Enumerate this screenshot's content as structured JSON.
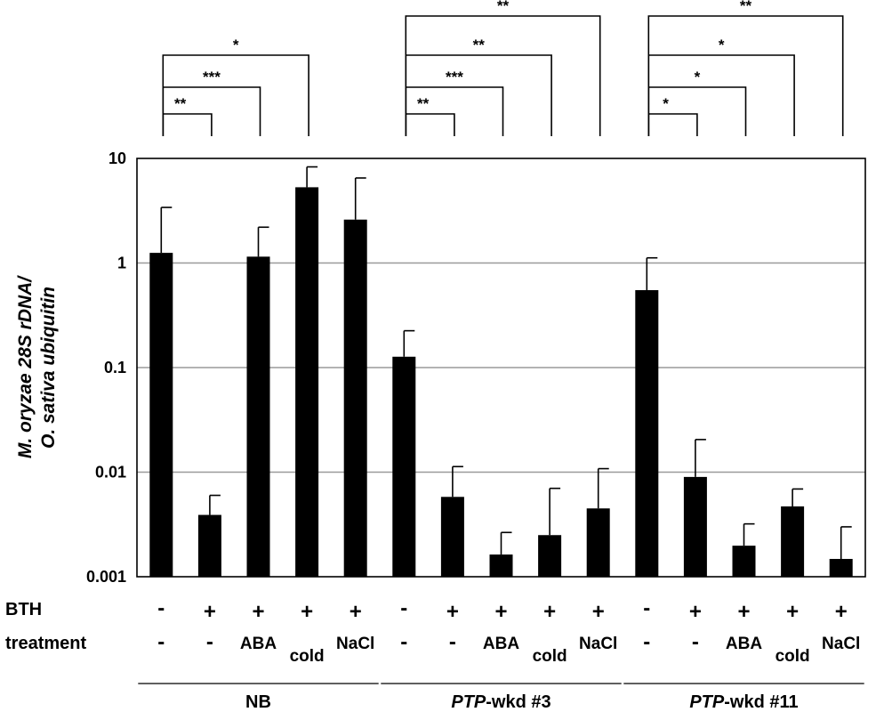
{
  "chart_data": {
    "type": "bar",
    "y_scale": "log",
    "ylim": [
      0.001,
      10
    ],
    "ytick_labels": [
      "10",
      "1",
      "0.1",
      "0.01",
      "0.001"
    ],
    "yticks": [
      10,
      1,
      0.1,
      0.01,
      0.001
    ],
    "grid": true,
    "ylabel_line1": "M. oryzae 28S rDNA/",
    "ylabel_line2": "O. sativa ubiquitin",
    "row_labels": {
      "bth": "BTH",
      "treatment": "treatment"
    },
    "bars": [
      {
        "group": "NB",
        "bth": "-",
        "treatment": "-",
        "value": 1.25,
        "err_upper": 3.4
      },
      {
        "group": "NB",
        "bth": "+",
        "treatment": "-",
        "value": 0.0039,
        "err_upper": 0.006
      },
      {
        "group": "NB",
        "bth": "+",
        "treatment": "ABA",
        "value": 1.15,
        "err_upper": 2.2
      },
      {
        "group": "NB",
        "bth": "+",
        "treatment": "cold",
        "value": 5.3,
        "err_upper": 8.3
      },
      {
        "group": "NB",
        "bth": "+",
        "treatment": "NaCl",
        "value": 2.6,
        "err_upper": 6.5
      },
      {
        "group": "PTP-wkd #3",
        "bth": "-",
        "treatment": "-",
        "value": 0.127,
        "err_upper": 0.225
      },
      {
        "group": "PTP-wkd #3",
        "bth": "+",
        "treatment": "-",
        "value": 0.0058,
        "err_upper": 0.0113
      },
      {
        "group": "PTP-wkd #3",
        "bth": "+",
        "treatment": "ABA",
        "value": 0.00163,
        "err_upper": 0.00265
      },
      {
        "group": "PTP-wkd #3",
        "bth": "+",
        "treatment": "cold",
        "value": 0.0025,
        "err_upper": 0.007
      },
      {
        "group": "PTP-wkd #3",
        "bth": "+",
        "treatment": "NaCl",
        "value": 0.0045,
        "err_upper": 0.0108
      },
      {
        "group": "PTP-wkd #11",
        "bth": "-",
        "treatment": "-",
        "value": 0.55,
        "err_upper": 1.12
      },
      {
        "group": "PTP-wkd #11",
        "bth": "+",
        "treatment": "-",
        "value": 0.009,
        "err_upper": 0.0205
      },
      {
        "group": "PTP-wkd #11",
        "bth": "+",
        "treatment": "ABA",
        "value": 0.00198,
        "err_upper": 0.0032
      },
      {
        "group": "PTP-wkd #11",
        "bth": "+",
        "treatment": "cold",
        "value": 0.0047,
        "err_upper": 0.0069
      },
      {
        "group": "PTP-wkd #11",
        "bth": "+",
        "treatment": "NaCl",
        "value": 0.00148,
        "err_upper": 0.003
      }
    ],
    "groups": [
      {
        "name_italic": "",
        "name_rest": "NB",
        "bars": [
          0,
          4
        ]
      },
      {
        "name_italic": "PTP",
        "name_rest": "-wkd #3",
        "bars": [
          5,
          9
        ]
      },
      {
        "name_italic": "PTP",
        "name_rest": "-wkd #11",
        "bars": [
          10,
          14
        ]
      }
    ],
    "significance": [
      {
        "from": 1,
        "to": 2,
        "label": "**"
      },
      {
        "from": 1,
        "to": 3,
        "label": "***"
      },
      {
        "from": 1,
        "to": 4,
        "label": "*"
      },
      {
        "from": 6,
        "to": 7,
        "label": "**"
      },
      {
        "from": 6,
        "to": 8,
        "label": "***"
      },
      {
        "from": 6,
        "to": 9,
        "label": "**"
      },
      {
        "from": 6,
        "to": 10,
        "label": "**"
      },
      {
        "from": 11,
        "to": 12,
        "label": "*"
      },
      {
        "from": 11,
        "to": 13,
        "label": "*"
      },
      {
        "from": 11,
        "to": 14,
        "label": "*"
      },
      {
        "from": 11,
        "to": 15,
        "label": "**"
      }
    ]
  }
}
